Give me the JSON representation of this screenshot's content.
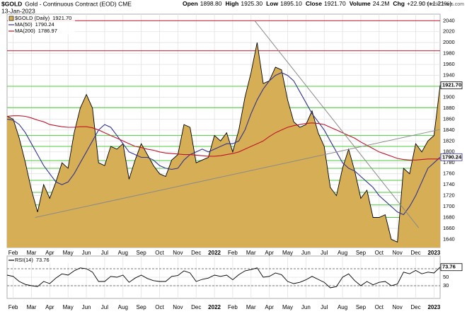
{
  "header": {
    "symbol": "$GOLD",
    "title": "Gold - Continuous Contract (EOD) CME",
    "date": "13-Jan-2023",
    "credit": "© StockCharts.com",
    "quote": [
      {
        "label": "Open",
        "value": "1898.80"
      },
      {
        "label": "High",
        "value": "1925.30"
      },
      {
        "label": "Low",
        "value": "1895.10"
      },
      {
        "label": "Close",
        "value": "1921.70"
      },
      {
        "label": "Volume",
        "value": "24.2M"
      },
      {
        "label": "Chg",
        "value": "+22.90 (+1.21%)"
      }
    ]
  },
  "chart_data": [
    {
      "type": "line",
      "categories": [
        null,
        "Feb",
        null,
        null,
        "Mar",
        null,
        null,
        "Apr",
        null,
        null,
        "May",
        null,
        null,
        "Jun",
        null,
        null,
        "Jul",
        null,
        null,
        "Aug",
        null,
        null,
        "Sep",
        null,
        null,
        "Oct",
        null,
        null,
        "Nov",
        null,
        null,
        "Dec",
        null,
        null,
        "2022",
        null,
        null,
        "Feb",
        null,
        null,
        "Mar",
        null,
        null,
        "Apr",
        null,
        null,
        "May",
        null,
        null,
        "Jun",
        null,
        null,
        "Jul",
        null,
        null,
        "Aug",
        null,
        null,
        "Sep",
        null,
        null,
        "Oct",
        null,
        null,
        "Nov",
        null,
        null,
        "Dec",
        null,
        null,
        "2023",
        null
      ],
      "ylim": [
        1625,
        2052
      ],
      "yticks": [
        1640,
        1660,
        1680,
        1700,
        1720,
        1740,
        1760,
        1780,
        1800,
        1820,
        1840,
        1860,
        1880,
        1900,
        1920,
        1940,
        1960,
        1980,
        2000,
        2020,
        2040
      ],
      "grid": true,
      "series": [
        {
          "name": "$GOLD (Daily)",
          "last_label": "1921.70",
          "color": "#000000",
          "fill": "#d6ae55",
          "axis_box": true,
          "values": [
            1865,
            1860,
            1825,
            1780,
            1730,
            1690,
            1740,
            1715,
            1745,
            1780,
            1770,
            1835,
            1880,
            1905,
            1880,
            1780,
            1775,
            1810,
            1805,
            1815,
            1750,
            1785,
            1815,
            1795,
            1775,
            1760,
            1755,
            1785,
            1795,
            1850,
            1845,
            1780,
            1785,
            1790,
            1830,
            1820,
            1835,
            1800,
            1840,
            1900,
            1945,
            2000,
            1925,
            1930,
            1955,
            1950,
            1895,
            1855,
            1845,
            1850,
            1875,
            1835,
            1810,
            1735,
            1720,
            1770,
            1805,
            1765,
            1715,
            1730,
            1680,
            1680,
            1685,
            1640,
            1635,
            1770,
            1760,
            1815,
            1800,
            1820,
            1830,
            1921.7
          ]
        },
        {
          "name": "MA(50)",
          "last_label": "1790.24",
          "color": "#33338f",
          "axis_box": true,
          "values": [
            1860,
            1858,
            1850,
            1835,
            1815,
            1795,
            1775,
            1760,
            1745,
            1740,
            1745,
            1760,
            1780,
            1800,
            1820,
            1840,
            1850,
            1845,
            1830,
            1815,
            1800,
            1795,
            1790,
            1790,
            1785,
            1775,
            1770,
            1768,
            1770,
            1785,
            1795,
            1800,
            1805,
            1800,
            1805,
            1810,
            1815,
            1815,
            1820,
            1840,
            1870,
            1895,
            1915,
            1930,
            1940,
            1945,
            1940,
            1930,
            1910,
            1890,
            1870,
            1855,
            1840,
            1820,
            1800,
            1780,
            1770,
            1765,
            1755,
            1745,
            1735,
            1720,
            1710,
            1700,
            1690,
            1685,
            1700,
            1720,
            1745,
            1770,
            1780,
            1790.24
          ]
        },
        {
          "name": "MA(200)",
          "last_label": "1786.97",
          "color": "#c0142b",
          "values": [
            1865,
            1866,
            1866,
            1865,
            1862,
            1858,
            1855,
            1850,
            1848,
            1846,
            1845,
            1845,
            1846,
            1846,
            1844,
            1840,
            1835,
            1830,
            1825,
            1820,
            1815,
            1810,
            1808,
            1805,
            1803,
            1800,
            1798,
            1797,
            1796,
            1795,
            1795,
            1794,
            1793,
            1792,
            1792,
            1793,
            1795,
            1797,
            1800,
            1805,
            1810,
            1815,
            1820,
            1828,
            1835,
            1840,
            1845,
            1848,
            1850,
            1852,
            1853,
            1852,
            1850,
            1845,
            1840,
            1835,
            1830,
            1825,
            1818,
            1812,
            1806,
            1800,
            1796,
            1792,
            1788,
            1786,
            1785,
            1785,
            1786,
            1787,
            1787,
            1786.97
          ]
        }
      ],
      "levels": [
        {
          "color": "#c0142b",
          "values": [
            2040,
            1985
          ]
        },
        {
          "color": "#4ccc3a",
          "values": [
            1920,
            1881,
            1830,
            1810,
            1784,
            1770,
            1748,
            1726,
            1703,
            1680
          ]
        }
      ],
      "trendlines": [
        {
          "color": "#8a8a8a",
          "x": [
            4.6,
            71
          ],
          "y": [
            1680,
            1841
          ]
        },
        {
          "color": "#8a8a8a",
          "x": [
            40.6,
            67.5
          ],
          "y": [
            2040,
            1661
          ]
        }
      ]
    },
    {
      "type": "line",
      "categories": [
        null,
        "Feb",
        null,
        null,
        "Mar",
        null,
        null,
        "Apr",
        null,
        null,
        "May",
        null,
        null,
        "Jun",
        null,
        null,
        "Jul",
        null,
        null,
        "Aug",
        null,
        null,
        "Sep",
        null,
        null,
        "Oct",
        null,
        null,
        "Nov",
        null,
        null,
        "Dec",
        null,
        null,
        "2022",
        null,
        null,
        "Feb",
        null,
        null,
        "Mar",
        null,
        null,
        "Apr",
        null,
        null,
        "May",
        null,
        null,
        "Jun",
        null,
        null,
        "Jul",
        null,
        null,
        "Aug",
        null,
        null,
        "Sep",
        null,
        null,
        "Oct",
        null,
        null,
        "Nov",
        null,
        null,
        "Dec",
        null,
        null,
        "2023",
        null
      ],
      "ylim": [
        0,
        100
      ],
      "yticks": [
        30,
        50
      ],
      "grid": true,
      "levels": [
        {
          "color": "#777777",
          "dashed": true,
          "values": [
            70,
            30
          ]
        }
      ],
      "series": [
        {
          "name": "RSI(14)",
          "last_label": "73.76",
          "color": "#000000",
          "axis_box": true,
          "values": [
            55,
            52,
            40,
            33,
            30,
            28,
            40,
            35,
            48,
            58,
            55,
            65,
            72,
            70,
            62,
            40,
            40,
            52,
            50,
            55,
            38,
            48,
            55,
            47,
            42,
            40,
            40,
            52,
            54,
            65,
            60,
            40,
            45,
            48,
            55,
            52,
            55,
            44,
            56,
            65,
            68,
            72,
            50,
            52,
            60,
            56,
            40,
            35,
            38,
            44,
            52,
            45,
            38,
            25,
            28,
            50,
            58,
            42,
            30,
            40,
            32,
            38,
            40,
            30,
            34,
            62,
            58,
            66,
            58,
            62,
            60,
            73.76
          ]
        }
      ]
    }
  ]
}
